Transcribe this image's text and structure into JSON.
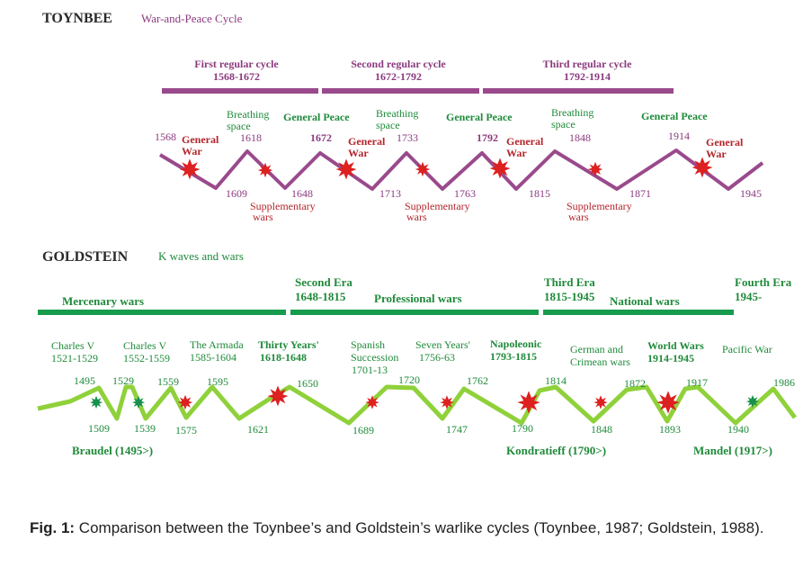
{
  "colors": {
    "purple": "#9a4a8c",
    "purple_text": "#8b3a7f",
    "red_text": "#b3252b",
    "green": "#8fd13a",
    "green_text": "#1f8a3a",
    "green_bar": "#179b4d",
    "dark_text": "#2a2a2a"
  },
  "toynbee": {
    "title": "TOYNBEE",
    "subtitle": "War-and-Peace Cycle",
    "cycles": [
      {
        "name": "First regular cycle",
        "range": "1568-1672"
      },
      {
        "name": "Second regular cycle",
        "range": "1672-1792"
      },
      {
        "name": "Third regular cycle",
        "range": "1792-1914"
      }
    ],
    "years": [
      "1568",
      "1609",
      "1618",
      "1648",
      "1672",
      "1713",
      "1733",
      "1763",
      "1792",
      "1815",
      "1848",
      "1871",
      "1914",
      "1945"
    ],
    "events": {
      "general_war": "General War",
      "general_peace": "General Peace",
      "breathing_space": "Breathing space",
      "supplementary_wars": "Supplementary wars"
    }
  },
  "goldstein": {
    "title": "GOLDSTEIN",
    "subtitle": "K waves and wars",
    "eras": [
      {
        "name": "Mercenary wars",
        "range": ""
      },
      {
        "name": "Second Era",
        "range": "1648-1815",
        "type": "Professional wars"
      },
      {
        "name": "Third Era",
        "range": "1815-1945",
        "type": "National wars"
      },
      {
        "name": "Fourth Era",
        "range": "1945-"
      }
    ],
    "wars": [
      {
        "name": "Charles V",
        "range": "1521-1529"
      },
      {
        "name": "Charles V",
        "range": "1552-1559"
      },
      {
        "name": "The Armada",
        "range": "1585-1604"
      },
      {
        "name": "Thirty Years'",
        "range": "1618-1648"
      },
      {
        "name": "Spanish Succession",
        "range": "1701-13"
      },
      {
        "name": "Seven Years'",
        "range": "1756-63"
      },
      {
        "name": "Napoleonic",
        "range": "1793-1815"
      },
      {
        "name": "German and Crimean wars",
        "range": ""
      },
      {
        "name": "World Wars",
        "range": "1914-1945"
      },
      {
        "name": "Pacific War",
        "range": ""
      }
    ],
    "years_top": [
      "1495",
      "1529",
      "1559",
      "1595",
      "1650",
      "1720",
      "1762",
      "1814",
      "1872",
      "1917",
      "1986"
    ],
    "years_bottom": [
      "1509",
      "1539",
      "1575",
      "1621",
      "1689",
      "1747",
      "1790",
      "1848",
      "1893",
      "1940"
    ],
    "authors": [
      "Braudel (1495>)",
      "Kondratieff (1790>)",
      "Mandel (1917>)"
    ]
  },
  "caption": {
    "label": "Fig. 1:",
    "text": "Comparison between the Toynbee’s and Goldstein’s warlike cycles (Toynbee, 1987; Goldstein, 1988)."
  }
}
